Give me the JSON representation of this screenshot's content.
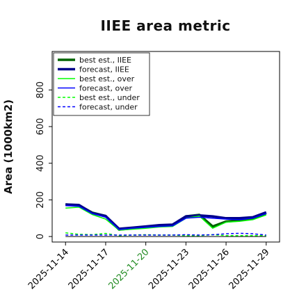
{
  "chart_data": {
    "type": "line",
    "title": "IIEE area metric",
    "xlabel": "",
    "ylabel": "Area (1000km2)",
    "ylim": [
      -30,
      1010
    ],
    "yticks": [
      0,
      200,
      400,
      600,
      800
    ],
    "ytick_labels": [
      "0",
      "200",
      "400",
      "600",
      "800"
    ],
    "xlim": [
      "2025-11-13",
      "2025-11-30"
    ],
    "xticks": [
      "2025-11-14",
      "2025-11-17",
      "2025-11-20",
      "2025-11-23",
      "2025-11-26",
      "2025-11-29"
    ],
    "xtick_labels": [
      "2025-11-14",
      "2025-11-17",
      "2025-11-20",
      "2025-11-23",
      "2025-11-26",
      "2025-11-29"
    ],
    "xtick_colors": [
      "#000000",
      "#000000",
      "#228B22",
      "#000000",
      "#000000",
      "#000000"
    ],
    "x": [
      "2025-11-14",
      "2025-11-15",
      "2025-11-16",
      "2025-11-17",
      "2025-11-18",
      "2025-11-19",
      "2025-11-20",
      "2025-11-21",
      "2025-11-22",
      "2025-11-23",
      "2025-11-24",
      "2025-11-25",
      "2025-11-26",
      "2025-11-27",
      "2025-11-28",
      "2025-11-29"
    ],
    "reference_line": {
      "y": 0,
      "color": "#000000"
    },
    "grid": false,
    "legend": "upper-left",
    "series": [
      {
        "name": "best est., IIEE",
        "color": "#006400",
        "style": "solid",
        "width": 3.5,
        "values": [
          175,
          170,
          130,
          112,
          38,
          45,
          52,
          60,
          62,
          110,
          118,
          55,
          82,
          88,
          98,
          128
        ]
      },
      {
        "name": "forecast, IIEE",
        "color": "#00008B",
        "style": "solid",
        "width": 3.5,
        "values": [
          175,
          172,
          128,
          112,
          42,
          48,
          55,
          62,
          65,
          110,
          115,
          110,
          100,
          100,
          105,
          132
        ]
      },
      {
        "name": "best est., over",
        "color": "#00FF00",
        "style": "solid",
        "width": 1.5,
        "values": [
          155,
          160,
          120,
          95,
          35,
          40,
          45,
          52,
          55,
          100,
          112,
          45,
          78,
          83,
          92,
          118
        ]
      },
      {
        "name": "forecast, over",
        "color": "#0000FF",
        "style": "solid",
        "width": 1.5,
        "values": [
          168,
          165,
          125,
          105,
          38,
          45,
          50,
          55,
          58,
          100,
          105,
          100,
          95,
          92,
          100,
          125
        ]
      },
      {
        "name": "best est., under",
        "color": "#00FF00",
        "style": "dashed",
        "width": 1.5,
        "values": [
          20,
          12,
          10,
          17,
          5,
          8,
          10,
          8,
          8,
          5,
          5,
          10,
          5,
          5,
          5,
          5
        ]
      },
      {
        "name": "forecast, under",
        "color": "#0000FF",
        "style": "dashed",
        "width": 1.5,
        "values": [
          8,
          8,
          8,
          8,
          8,
          8,
          8,
          8,
          8,
          10,
          8,
          10,
          15,
          18,
          15,
          8
        ]
      }
    ]
  }
}
